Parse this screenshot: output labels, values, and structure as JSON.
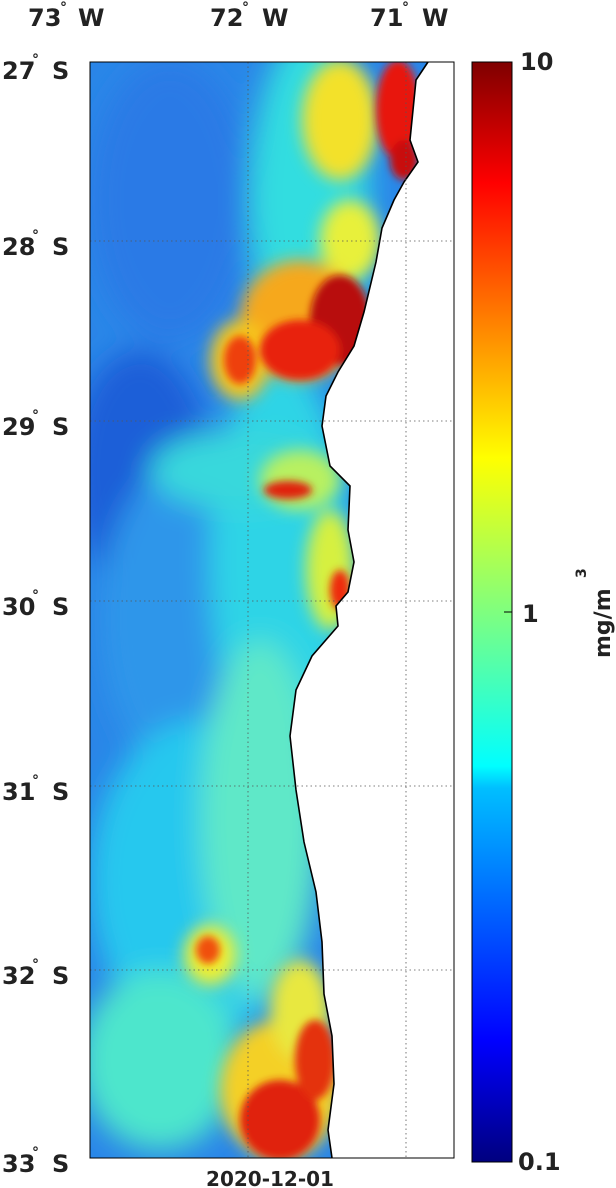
{
  "map": {
    "date": "2020-12-01",
    "lon_labels": [
      {
        "deg": "73",
        "hemi": "W"
      },
      {
        "deg": "72",
        "hemi": "W"
      },
      {
        "deg": "71",
        "hemi": "W"
      }
    ],
    "lat_labels": [
      {
        "deg": "27",
        "hemi": "S"
      },
      {
        "deg": "28",
        "hemi": "S"
      },
      {
        "deg": "29",
        "hemi": "S"
      },
      {
        "deg": "30",
        "hemi": "S"
      },
      {
        "deg": "31",
        "hemi": "S"
      },
      {
        "deg": "32",
        "hemi": "S"
      },
      {
        "deg": "33",
        "hemi": "S"
      }
    ],
    "degree_symbol": "°"
  },
  "colorbar": {
    "labels": [
      "10",
      "1",
      "0.1"
    ],
    "unit": "mg/m",
    "unit_superscript": "3",
    "scale": "log",
    "colormap": "jet"
  },
  "colors": {
    "land": "#ffffff",
    "coastline": "#000000",
    "ocean_low": "#1e6fe0",
    "ocean_mid": "#22d4e8",
    "high": "#e8140a"
  }
}
